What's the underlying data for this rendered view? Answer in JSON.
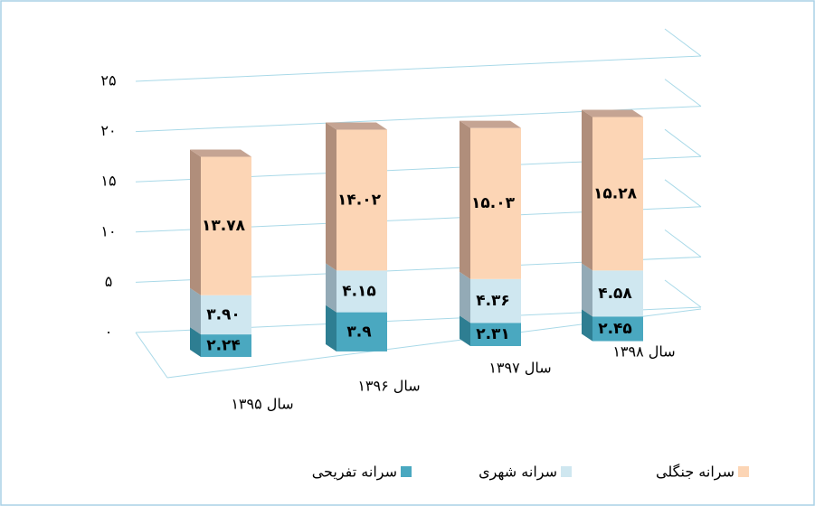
{
  "chart_data": {
    "type": "bar3d_stacked",
    "categories": [
      "سال ۱۳۹۵",
      "سال ۱۳۹۶",
      "سال ۱۳۹۷",
      "سال ۱۳۹۸"
    ],
    "series": [
      {
        "name": "سرانه تفریحی",
        "color": "#4aa8c0",
        "values": [
          2.24,
          3.9,
          2.31,
          2.45
        ],
        "value_labels": [
          "۲.۲۴",
          "۳.۹",
          "۲.۳۱",
          "۲.۴۵"
        ]
      },
      {
        "name": "سرانه شهری",
        "color": "#cfe7f0",
        "values": [
          3.9,
          4.15,
          4.36,
          4.58
        ],
        "value_labels": [
          "۳.۹۰",
          "۴.۱۵",
          "۴.۳۶",
          "۴.۵۸"
        ]
      },
      {
        "name": "سرانه جنگلی",
        "color": "#fcd5b5",
        "values": [
          13.78,
          14.02,
          15.03,
          15.28
        ],
        "value_labels": [
          "۱۳.۷۸",
          "۱۴.۰۲",
          "۱۵.۰۳",
          "۱۵.۲۸"
        ]
      }
    ],
    "ylim": [
      0,
      25
    ],
    "yticks": [
      {
        "value": 0,
        "label": "۰"
      },
      {
        "value": 5,
        "label": "۵"
      },
      {
        "value": 10,
        "label": "۱۰"
      },
      {
        "value": 15,
        "label": "۱۵"
      },
      {
        "value": 20,
        "label": "۲۰"
      },
      {
        "value": 25,
        "label": "۲۵"
      }
    ],
    "grid": true,
    "legend": "bottom"
  }
}
